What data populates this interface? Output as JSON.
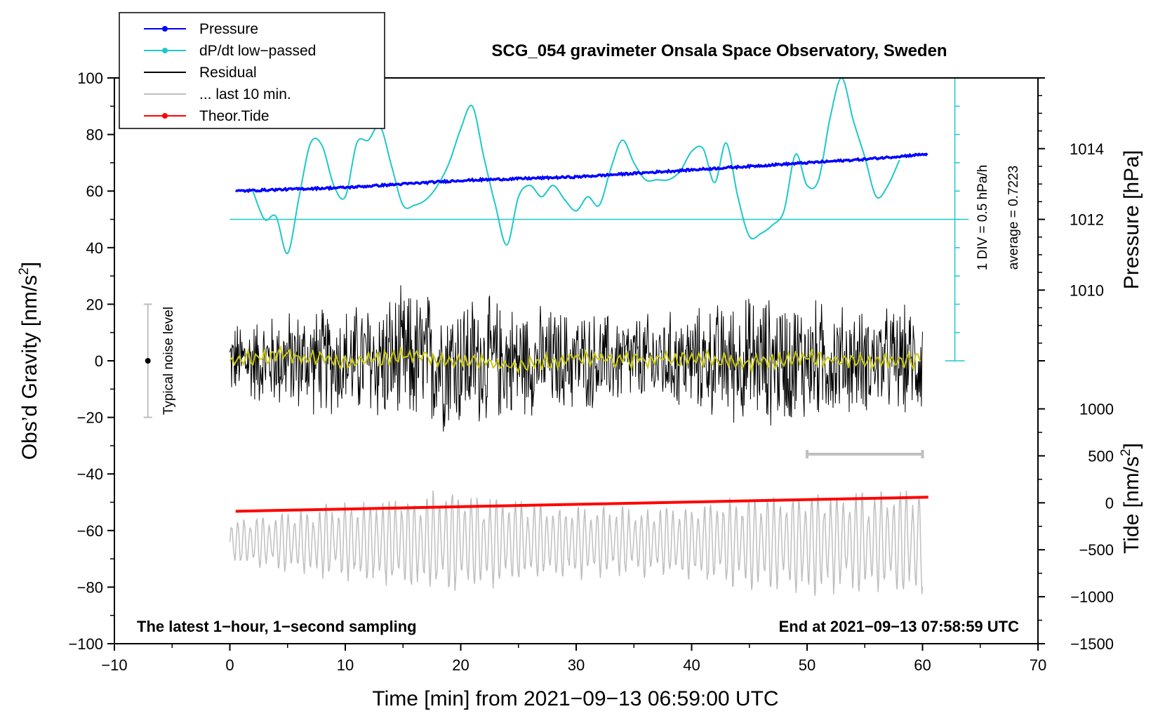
{
  "chart_data": {
    "type": "line",
    "title": "SCG_054 gravimeter Onsala Space Observatory, Sweden",
    "xlabel": "Time [min] from 2021−09−13 06:59:00 UTC",
    "ylabel_left": "Obs’d Gravity [nm/s",
    "ylabel_left_sup": "2",
    "ylabel_left_end": "]",
    "ylabel_pressure": "Pressure [hPa]",
    "ylabel_tide": "Tide [nm/s",
    "ylabel_tide_sup": "2",
    "ylabel_tide_end": "]",
    "xlim": [
      -10,
      70
    ],
    "ylim": [
      -100,
      100
    ],
    "x_ticks": [
      -10,
      0,
      10,
      20,
      30,
      40,
      50,
      60,
      70
    ],
    "x_tick_labels": [
      "−10",
      "0",
      "10",
      "20",
      "30",
      "40",
      "50",
      "60",
      "70"
    ],
    "y_ticks": [
      -100,
      -80,
      -60,
      -40,
      -20,
      0,
      20,
      40,
      60,
      80,
      100
    ],
    "y_tick_labels": [
      "−100",
      "−80",
      "−60",
      "−40",
      "−20",
      "0",
      "20",
      "40",
      "60",
      "80",
      "100"
    ],
    "pressure_axis": {
      "ticks": [
        1010,
        1012,
        1014
      ],
      "tick_labels": [
        "1010",
        "1012",
        "1014"
      ],
      "map_hpa": [
        1012,
        1014
      ],
      "map_grav": [
        50,
        75
      ]
    },
    "tide_axis": {
      "ticks": [
        -1500,
        -1000,
        -500,
        0,
        500,
        1000
      ],
      "tick_labels": [
        "−1500",
        "−1000",
        "−500",
        "0",
        "500",
        "1000"
      ],
      "map_tide": [
        -1500,
        1000
      ],
      "map_grav": [
        -100,
        -17
      ]
    },
    "legend": [
      {
        "label": "Pressure",
        "color": "#0000ff",
        "marker": true
      },
      {
        "label": "dP/dt low−passed",
        "color": "#1ec8c8",
        "marker": true
      },
      {
        "label": "Residual",
        "color": "#000000",
        "marker": false
      },
      {
        "label": "... last 10 min.",
        "color": "#bfbfbf",
        "marker": false
      },
      {
        "label": "Theor.Tide",
        "color": "#ff0000",
        "marker": true
      }
    ],
    "series": [
      {
        "name": "Pressure",
        "color": "#0000ff",
        "unit": "hPa",
        "x": [
          0.5,
          5,
          10,
          15,
          20,
          25,
          30,
          35,
          40,
          45,
          50,
          55,
          60.5
        ],
        "values": [
          1012.8,
          1012.85,
          1012.9,
          1013.0,
          1013.1,
          1013.15,
          1013.2,
          1013.3,
          1013.4,
          1013.5,
          1013.6,
          1013.7,
          1013.85
        ]
      },
      {
        "name": "dP/dt low−passed",
        "color": "#1ec8c8",
        "x": [
          2,
          3,
          4,
          5,
          6,
          7,
          8,
          9,
          10,
          11,
          12,
          13,
          14,
          15,
          16,
          17,
          18,
          19,
          20,
          21,
          22,
          23,
          24,
          25,
          26,
          27,
          28,
          29,
          30,
          31,
          32,
          33,
          34,
          35,
          36,
          37,
          38,
          39,
          40,
          41,
          42,
          43,
          44,
          45,
          46,
          47,
          48,
          49,
          50,
          51,
          52,
          53,
          54,
          55,
          56,
          57,
          58
        ],
        "values": [
          60,
          50,
          51,
          38,
          58,
          77,
          76,
          62,
          58,
          77,
          78,
          83,
          69,
          55,
          55,
          57,
          62,
          70,
          82,
          90,
          72,
          55,
          41,
          58,
          62,
          58,
          62,
          57,
          53,
          58,
          55,
          68,
          78,
          70,
          64,
          64,
          64,
          67,
          74,
          75,
          63,
          77,
          58,
          44,
          45,
          48,
          53,
          73,
          62,
          64,
          86,
          100,
          85,
          72,
          58,
          62,
          71
        ]
      },
      {
        "name": "Residual",
        "color": "#000000",
        "x": [
          0,
          5,
          10,
          15,
          20,
          25,
          30,
          35,
          40,
          45,
          50,
          55,
          60
        ],
        "envelope": [
          15,
          20,
          22,
          28,
          28,
          22,
          20,
          18,
          20,
          26,
          25,
          20,
          22
        ]
      },
      {
        "name": "Residual low−passed",
        "color": "#c8c80f",
        "x": [
          0,
          5,
          10,
          15,
          20,
          25,
          30,
          35,
          40,
          45,
          50,
          55,
          60
        ],
        "values": [
          0,
          2,
          -1,
          2,
          0,
          -2,
          1,
          0,
          1,
          -1,
          1,
          0,
          0
        ]
      },
      {
        "name": "... last 10 min.",
        "color": "#bfbfbf",
        "x": [
          0,
          5,
          10,
          15,
          20,
          25,
          30,
          35,
          40,
          45,
          50,
          55,
          60
        ],
        "amplitude": [
          8,
          12,
          15,
          18,
          20,
          16,
          14,
          13,
          15,
          18,
          20,
          19,
          22
        ],
        "baseline": -64
      },
      {
        "name": "Theor.Tide",
        "color": "#ff0000",
        "unit": "nm/s2",
        "x": [
          0.5,
          60.5
        ],
        "values": [
          -90,
          60
        ]
      }
    ],
    "pressure_average_label": "average = 0.7223",
    "pressure_div_label": "1 DIV = 0.5 hPa/h",
    "noise_label": "Typical noise level",
    "noise_range": [
      -20,
      20
    ],
    "last10_bar": [
      50,
      60
    ],
    "annotation_left": "The latest 1−hour, 1−second sampling",
    "annotation_right": "End at 2021−09−13 07:58:59 UTC"
  }
}
